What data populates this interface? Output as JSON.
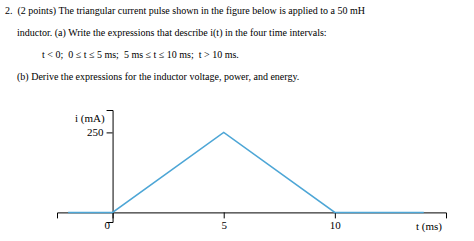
{
  "chart_data": {
    "type": "line",
    "annotations": [
      "2.  (2 points) The triangular current pulse shown in the figure below is applied to a 50 mH",
      "inductor. (a) Write the expressions that describe i(t) in the four time intervals:",
      "t < 0;  0 ≤ t ≤ 5 ms;  5 ms ≤ t ≤ 10 ms;  t > 10 ms.",
      "(b) Derive the expressions for the inductor voltage, power, and energy."
    ],
    "xlabel": "t (ms)",
    "ylabel": "i (mA)",
    "x": [
      -2,
      0,
      5,
      10,
      14
    ],
    "values": [
      0,
      0,
      250,
      0,
      0
    ],
    "color": "#4da6d6",
    "xlim": [
      -2.5,
      15
    ],
    "ylim": [
      -30,
      320
    ],
    "xticks": [
      0,
      5,
      10
    ],
    "yticks": [
      250
    ],
    "grid": false
  }
}
